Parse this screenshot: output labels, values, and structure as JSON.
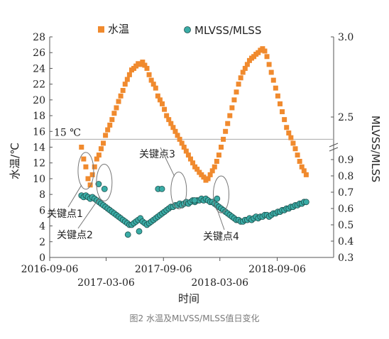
{
  "caption": "图2 水温及MLVSS/MLSS值日变化",
  "chart_data": {
    "type": "scatter",
    "xlabel": "时间",
    "ylabel_left": "水温/℃",
    "ylabel_right": "MLVSS/MLSS",
    "x_ticks_upper": [
      "2016-09-06",
      "2017-09-06",
      "2018-09-06"
    ],
    "x_ticks_lower": [
      "2017-03-06",
      "2018-03-06"
    ],
    "xlim": [
      "2016-09-06",
      "2019-03-06"
    ],
    "ylim_left": [
      0,
      28
    ],
    "y_ticks_left": [
      "0",
      "2",
      "4",
      "6",
      "8",
      "10",
      "12",
      "14",
      "16",
      "18",
      "20",
      "22",
      "24",
      "26",
      "28"
    ],
    "y_ticks_right_lower": [
      "0.3",
      "0.4",
      "0.5",
      "0.6",
      "0.7",
      "0.8",
      "0.9"
    ],
    "y_ticks_right_upper": [
      "2.5",
      "3.0"
    ],
    "legend_position": "top",
    "reference_line": {
      "value": 15,
      "label": "15 ℃"
    },
    "series": [
      {
        "name": "水温",
        "axis": "left",
        "marker": "square",
        "color": "#f08a2e",
        "points": [
          [
            "2016-12-17",
            14.0
          ],
          [
            "2016-12-24",
            12.5
          ],
          [
            "2016-12-31",
            11.5
          ],
          [
            "2017-01-07",
            10.0
          ],
          [
            "2017-01-14",
            9.2
          ],
          [
            "2017-01-21",
            10.5
          ],
          [
            "2017-01-28",
            11.5
          ],
          [
            "2017-02-04",
            12.5
          ],
          [
            "2017-02-11",
            13.0
          ],
          [
            "2017-02-18",
            13.8
          ],
          [
            "2017-02-25",
            14.5
          ],
          [
            "2017-03-04",
            15.5
          ],
          [
            "2017-03-11",
            16.2
          ],
          [
            "2017-03-18",
            16.8
          ],
          [
            "2017-03-25",
            17.5
          ],
          [
            "2017-04-01",
            18.3
          ],
          [
            "2017-04-08",
            19.0
          ],
          [
            "2017-04-15",
            19.8
          ],
          [
            "2017-04-22",
            20.5
          ],
          [
            "2017-04-29",
            21.2
          ],
          [
            "2017-05-06",
            22.0
          ],
          [
            "2017-05-13",
            22.6
          ],
          [
            "2017-05-20",
            23.2
          ],
          [
            "2017-05-27",
            23.8
          ],
          [
            "2017-06-03",
            24.0
          ],
          [
            "2017-06-10",
            24.3
          ],
          [
            "2017-06-17",
            24.6
          ],
          [
            "2017-06-24",
            24.5
          ],
          [
            "2017-07-01",
            24.8
          ],
          [
            "2017-07-08",
            24.4
          ],
          [
            "2017-07-15",
            24.0
          ],
          [
            "2017-07-22",
            23.2
          ],
          [
            "2017-07-29",
            22.5
          ],
          [
            "2017-08-05",
            22.0
          ],
          [
            "2017-08-12",
            21.5
          ],
          [
            "2017-08-19",
            20.5
          ],
          [
            "2017-08-26",
            20.0
          ],
          [
            "2017-09-02",
            19.5
          ],
          [
            "2017-09-09",
            18.8
          ],
          [
            "2017-09-16",
            18.0
          ],
          [
            "2017-09-23",
            17.5
          ],
          [
            "2017-09-30",
            17.0
          ],
          [
            "2017-10-07",
            16.5
          ],
          [
            "2017-10-14",
            16.0
          ],
          [
            "2017-10-21",
            15.5
          ],
          [
            "2017-10-28",
            15.0
          ],
          [
            "2017-11-04",
            14.5
          ],
          [
            "2017-11-11",
            14.0
          ],
          [
            "2017-11-18",
            13.5
          ],
          [
            "2017-11-25",
            13.0
          ],
          [
            "2017-12-02",
            12.5
          ],
          [
            "2017-12-09",
            12.0
          ],
          [
            "2017-12-16",
            11.5
          ],
          [
            "2017-12-23",
            11.2
          ],
          [
            "2017-12-30",
            10.8
          ],
          [
            "2018-01-06",
            10.5
          ],
          [
            "2018-01-13",
            10.2
          ],
          [
            "2018-01-20",
            9.8
          ],
          [
            "2018-01-27",
            10.0
          ],
          [
            "2018-02-03",
            10.5
          ],
          [
            "2018-02-10",
            11.0
          ],
          [
            "2018-02-17",
            11.5
          ],
          [
            "2018-02-24",
            12.2
          ],
          [
            "2018-03-03",
            13.0
          ],
          [
            "2018-03-10",
            14.0
          ],
          [
            "2018-03-17",
            15.0
          ],
          [
            "2018-03-24",
            16.0
          ],
          [
            "2018-03-31",
            17.0
          ],
          [
            "2018-04-07",
            18.0
          ],
          [
            "2018-04-14",
            19.0
          ],
          [
            "2018-04-21",
            20.0
          ],
          [
            "2018-04-28",
            21.0
          ],
          [
            "2018-05-05",
            22.0
          ],
          [
            "2018-05-12",
            22.8
          ],
          [
            "2018-05-19",
            23.5
          ],
          [
            "2018-05-26",
            24.0
          ],
          [
            "2018-06-02",
            24.5
          ],
          [
            "2018-06-09",
            25.0
          ],
          [
            "2018-06-16",
            25.3
          ],
          [
            "2018-06-23",
            25.5
          ],
          [
            "2018-06-30",
            25.8
          ],
          [
            "2018-07-07",
            26.0
          ],
          [
            "2018-07-14",
            26.3
          ],
          [
            "2018-07-21",
            26.5
          ],
          [
            "2018-07-28",
            26.2
          ],
          [
            "2018-08-04",
            25.5
          ],
          [
            "2018-08-11",
            24.5
          ],
          [
            "2018-08-18",
            23.5
          ],
          [
            "2018-08-25",
            22.5
          ],
          [
            "2018-09-01",
            21.5
          ],
          [
            "2018-09-08",
            20.5
          ],
          [
            "2018-09-15",
            19.5
          ],
          [
            "2018-09-22",
            18.5
          ],
          [
            "2018-09-29",
            17.5
          ],
          [
            "2018-10-06",
            16.5
          ],
          [
            "2018-10-13",
            15.8
          ],
          [
            "2018-10-20",
            15.2
          ],
          [
            "2018-10-27",
            14.5
          ],
          [
            "2018-11-03",
            13.8
          ],
          [
            "2018-11-10",
            13.0
          ],
          [
            "2018-11-17",
            12.2
          ],
          [
            "2018-11-24",
            11.5
          ],
          [
            "2018-12-01",
            11.0
          ],
          [
            "2018-12-08",
            10.5
          ]
        ]
      },
      {
        "name": "MLVSS/MLSS",
        "axis": "right",
        "marker": "circle",
        "color": "#3aaca6",
        "points": [
          [
            "2016-12-17",
            0.68
          ],
          [
            "2016-12-24",
            0.67
          ],
          [
            "2016-12-31",
            0.68
          ],
          [
            "2017-01-07",
            0.67
          ],
          [
            "2017-01-14",
            0.66
          ],
          [
            "2017-01-21",
            0.67
          ],
          [
            "2017-01-28",
            0.66
          ],
          [
            "2017-02-04",
            0.65
          ],
          [
            "2017-02-11",
            0.64
          ],
          [
            "2017-02-18",
            0.63
          ],
          [
            "2017-02-25",
            0.62
          ],
          [
            "2017-03-04",
            0.61
          ],
          [
            "2017-03-11",
            0.6
          ],
          [
            "2017-03-18",
            0.59
          ],
          [
            "2017-03-25",
            0.58
          ],
          [
            "2017-04-01",
            0.57
          ],
          [
            "2017-04-08",
            0.56
          ],
          [
            "2017-04-15",
            0.55
          ],
          [
            "2017-04-22",
            0.54
          ],
          [
            "2017-04-29",
            0.53
          ],
          [
            "2017-05-06",
            0.52
          ],
          [
            "2017-05-13",
            0.51
          ],
          [
            "2017-05-20",
            0.5
          ],
          [
            "2017-05-27",
            0.5
          ],
          [
            "2017-06-03",
            0.51
          ],
          [
            "2017-06-10",
            0.52
          ],
          [
            "2017-06-17",
            0.53
          ],
          [
            "2017-06-24",
            0.54
          ],
          [
            "2017-07-01",
            0.52
          ],
          [
            "2017-07-08",
            0.51
          ],
          [
            "2017-07-15",
            0.5
          ],
          [
            "2017-07-22",
            0.51
          ],
          [
            "2017-07-29",
            0.52
          ],
          [
            "2017-08-05",
            0.53
          ],
          [
            "2017-08-12",
            0.54
          ],
          [
            "2017-08-19",
            0.55
          ],
          [
            "2017-08-26",
            0.56
          ],
          [
            "2017-09-02",
            0.57
          ],
          [
            "2017-09-09",
            0.58
          ],
          [
            "2017-09-16",
            0.59
          ],
          [
            "2017-09-23",
            0.6
          ],
          [
            "2017-09-30",
            0.61
          ],
          [
            "2017-10-07",
            0.61
          ],
          [
            "2017-10-14",
            0.62
          ],
          [
            "2017-10-21",
            0.62
          ],
          [
            "2017-10-28",
            0.63
          ],
          [
            "2017-11-04",
            0.62
          ],
          [
            "2017-11-11",
            0.63
          ],
          [
            "2017-11-18",
            0.64
          ],
          [
            "2017-11-25",
            0.63
          ],
          [
            "2017-12-02",
            0.64
          ],
          [
            "2017-12-09",
            0.65
          ],
          [
            "2017-12-16",
            0.64
          ],
          [
            "2017-12-23",
            0.65
          ],
          [
            "2017-12-30",
            0.65
          ],
          [
            "2018-01-06",
            0.66
          ],
          [
            "2018-01-13",
            0.65
          ],
          [
            "2018-01-20",
            0.66
          ],
          [
            "2018-01-27",
            0.65
          ],
          [
            "2018-02-03",
            0.64
          ],
          [
            "2018-02-10",
            0.64
          ],
          [
            "2018-02-17",
            0.63
          ],
          [
            "2018-02-24",
            0.62
          ],
          [
            "2018-03-03",
            0.61
          ],
          [
            "2018-03-10",
            0.6
          ],
          [
            "2018-03-17",
            0.59
          ],
          [
            "2018-03-24",
            0.58
          ],
          [
            "2018-03-31",
            0.57
          ],
          [
            "2018-04-07",
            0.56
          ],
          [
            "2018-04-14",
            0.55
          ],
          [
            "2018-04-21",
            0.54
          ],
          [
            "2018-04-28",
            0.53
          ],
          [
            "2018-05-05",
            0.53
          ],
          [
            "2018-05-12",
            0.52
          ],
          [
            "2018-05-19",
            0.52
          ],
          [
            "2018-05-26",
            0.53
          ],
          [
            "2018-06-02",
            0.53
          ],
          [
            "2018-06-09",
            0.54
          ],
          [
            "2018-06-16",
            0.53
          ],
          [
            "2018-06-23",
            0.54
          ],
          [
            "2018-06-30",
            0.55
          ],
          [
            "2018-07-07",
            0.54
          ],
          [
            "2018-07-14",
            0.55
          ],
          [
            "2018-07-21",
            0.55
          ],
          [
            "2018-07-28",
            0.56
          ],
          [
            "2018-08-04",
            0.56
          ],
          [
            "2018-08-11",
            0.55
          ],
          [
            "2018-08-18",
            0.56
          ],
          [
            "2018-08-25",
            0.57
          ],
          [
            "2018-09-01",
            0.57
          ],
          [
            "2018-09-08",
            0.58
          ],
          [
            "2018-09-15",
            0.58
          ],
          [
            "2018-09-22",
            0.59
          ],
          [
            "2018-09-29",
            0.59
          ],
          [
            "2018-10-06",
            0.6
          ],
          [
            "2018-10-13",
            0.6
          ],
          [
            "2018-10-20",
            0.61
          ],
          [
            "2018-10-27",
            0.61
          ],
          [
            "2018-11-03",
            0.62
          ],
          [
            "2018-11-10",
            0.62
          ],
          [
            "2018-11-17",
            0.63
          ],
          [
            "2018-11-24",
            0.63
          ],
          [
            "2018-12-01",
            0.64
          ],
          [
            "2018-12-08",
            0.64
          ],
          [
            "2017-02-10",
            0.75
          ],
          [
            "2017-03-01",
            0.72
          ],
          [
            "2017-05-15",
            0.44
          ],
          [
            "2017-06-20",
            0.46
          ],
          [
            "2017-08-20",
            0.72
          ],
          [
            "2017-09-01",
            0.72
          ],
          [
            "2017-12-15",
            0.65
          ],
          [
            "2018-02-25",
            0.66
          ]
        ]
      }
    ],
    "annotations": [
      {
        "label": "关键点1",
        "date": "2016-12-31",
        "value": 11.0
      },
      {
        "label": "关键点2",
        "date": "2017-02-28",
        "value": 9.5
      },
      {
        "label": "关键点3",
        "date": "2017-10-25",
        "value": 8.5
      },
      {
        "label": "关键点4",
        "date": "2018-03-10",
        "value": 8.0
      }
    ]
  }
}
